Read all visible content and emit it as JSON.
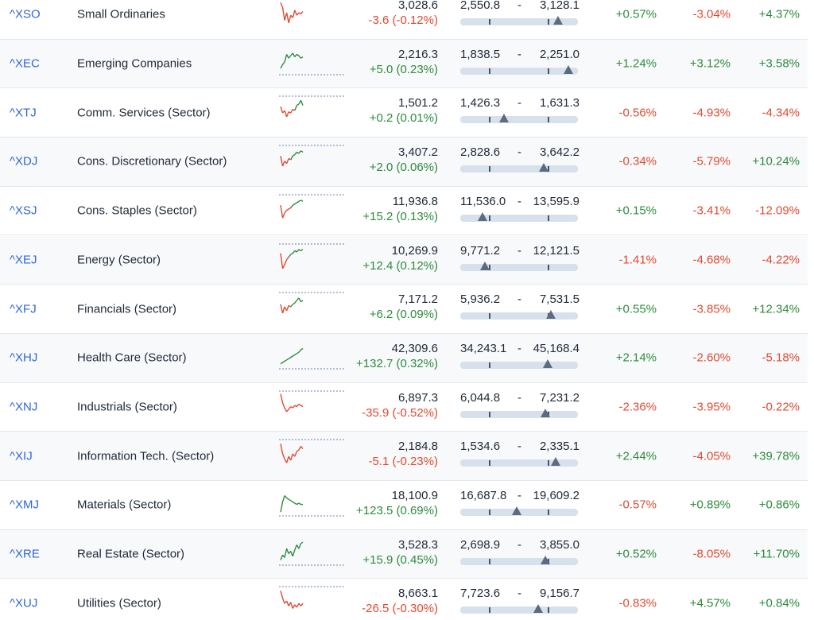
{
  "colors": {
    "positive": "#2e8b3d",
    "negative": "#e04a32",
    "link": "#2f66d6"
  },
  "rows": [
    {
      "code": "^XSO",
      "name": "Small Ordinaries",
      "price": "3,028.6",
      "change": "-3.6 (-0.12%)",
      "change_dir": "neg",
      "range_low": "2,550.8",
      "range_high": "3,128.1",
      "range_position": 0.83,
      "p1": "+0.57%",
      "p1_dir": "pos",
      "p2": "-3.04%",
      "p2_dir": "neg",
      "p3": "+4.37%",
      "p3_dir": "pos",
      "spark": {
        "trend": "neg",
        "points": [
          0.1,
          0.3,
          0.8,
          0.5,
          0.9,
          0.6,
          0.7,
          0.4,
          0.6,
          0.5,
          0.55,
          0.45
        ]
      }
    },
    {
      "code": "^XEC",
      "name": "Emerging Companies",
      "price": "2,216.3",
      "change": "+5.0 (0.23%)",
      "change_dir": "pos",
      "range_low": "1,838.5",
      "range_high": "2,251.0",
      "range_position": 0.92,
      "p1": "+1.24%",
      "p1_dir": "pos",
      "p2": "+3.12%",
      "p2_dir": "pos",
      "p3": "+3.58%",
      "p3_dir": "pos",
      "spark": {
        "trend": "pos",
        "points": [
          0.75,
          0.6,
          0.5,
          0.2,
          0.35,
          0.25,
          0.15,
          0.3,
          0.2,
          0.25,
          0.35,
          0.3
        ]
      }
    },
    {
      "code": "^XTJ",
      "name": "Comm. Services (Sector)",
      "price": "1,501.2",
      "change": "+0.2 (0.01%)",
      "change_dir": "pos",
      "range_low": "1,426.3",
      "range_high": "1,631.3",
      "range_position": 0.37,
      "p1": "-0.56%",
      "p1_dir": "neg",
      "p2": "-4.93%",
      "p2_dir": "neg",
      "p3": "-4.34%",
      "p3_dir": "neg",
      "spark": {
        "trend": "mixed",
        "points": [
          0.35,
          0.6,
          0.5,
          0.75,
          0.55,
          0.6,
          0.45,
          0.5,
          0.3,
          0.25,
          0.1,
          0.3
        ]
      }
    },
    {
      "code": "^XDJ",
      "name": "Cons. Discretionary (Sector)",
      "price": "3,407.2",
      "change": "+2.0 (0.06%)",
      "change_dir": "pos",
      "range_low": "2,828.6",
      "range_high": "3,642.2",
      "range_position": 0.71,
      "p1": "-0.34%",
      "p1_dir": "neg",
      "p2": "-5.79%",
      "p2_dir": "neg",
      "p3": "+10.24%",
      "p3_dir": "pos",
      "spark": {
        "trend": "mixed",
        "points": [
          0.35,
          0.75,
          0.55,
          0.65,
          0.45,
          0.5,
          0.35,
          0.3,
          0.2,
          0.25,
          0.15,
          0.2
        ]
      }
    },
    {
      "code": "^XSJ",
      "name": "Cons. Staples (Sector)",
      "price": "11,936.8",
      "change": "+15.2 (0.13%)",
      "change_dir": "pos",
      "range_low": "11,536.0",
      "range_high": "13,595.9",
      "range_position": 0.19,
      "p1": "+0.15%",
      "p1_dir": "pos",
      "p2": "-3.41%",
      "p2_dir": "neg",
      "p3": "-12.09%",
      "p3_dir": "neg",
      "spark": {
        "trend": "mixed",
        "points": [
          0.35,
          0.85,
          0.65,
          0.55,
          0.5,
          0.45,
          0.35,
          0.3,
          0.25,
          0.2,
          0.15,
          0.2
        ]
      }
    },
    {
      "code": "^XEJ",
      "name": "Energy (Sector)",
      "price": "10,269.9",
      "change": "+12.4 (0.12%)",
      "change_dir": "pos",
      "range_low": "9,771.2",
      "range_high": "12,121.5",
      "range_position": 0.21,
      "p1": "-1.41%",
      "p1_dir": "neg",
      "p2": "-4.68%",
      "p2_dir": "neg",
      "p3": "-4.22%",
      "p3_dir": "neg",
      "spark": {
        "trend": "mixed",
        "points": [
          0.3,
          0.9,
          0.75,
          0.55,
          0.45,
          0.35,
          0.3,
          0.2,
          0.25,
          0.15,
          0.2,
          0.15
        ]
      }
    },
    {
      "code": "^XFJ",
      "name": "Financials (Sector)",
      "price": "7,171.2",
      "change": "+6.2 (0.09%)",
      "change_dir": "pos",
      "range_low": "5,936.2",
      "range_high": "7,531.5",
      "range_position": 0.77,
      "p1": "+0.55%",
      "p1_dir": "pos",
      "p2": "-3.85%",
      "p2_dir": "neg",
      "p3": "+12.34%",
      "p3_dir": "pos",
      "spark": {
        "trend": "mixed",
        "points": [
          0.4,
          0.75,
          0.5,
          0.65,
          0.45,
          0.5,
          0.4,
          0.35,
          0.25,
          0.15,
          0.3,
          0.25
        ]
      }
    },
    {
      "code": "^XHJ",
      "name": "Health Care (Sector)",
      "price": "42,309.6",
      "change": "+132.7 (0.32%)",
      "change_dir": "pos",
      "range_low": "34,243.1",
      "range_high": "45,168.4",
      "range_position": 0.74,
      "p1": "+2.14%",
      "p1_dir": "pos",
      "p2": "-2.60%",
      "p2_dir": "neg",
      "p3": "-5.18%",
      "p3_dir": "neg",
      "spark": {
        "trend": "pos",
        "points": [
          0.8,
          0.75,
          0.7,
          0.65,
          0.6,
          0.55,
          0.5,
          0.45,
          0.4,
          0.35,
          0.25,
          0.2
        ]
      }
    },
    {
      "code": "^XNJ",
      "name": "Industrials (Sector)",
      "price": "6,897.3",
      "change": "-35.9 (-0.52%)",
      "change_dir": "neg",
      "range_low": "6,044.8",
      "range_high": "7,231.2",
      "range_position": 0.72,
      "p1": "-2.36%",
      "p1_dir": "neg",
      "p2": "-3.95%",
      "p2_dir": "neg",
      "p3": "-0.22%",
      "p3_dir": "neg",
      "spark": {
        "trend": "neg",
        "points": [
          0.05,
          0.4,
          0.6,
          0.75,
          0.65,
          0.55,
          0.6,
          0.5,
          0.55,
          0.45,
          0.5,
          0.55
        ]
      }
    },
    {
      "code": "^XIJ",
      "name": "Information Tech. (Sector)",
      "price": "2,184.8",
      "change": "-5.1 (-0.23%)",
      "change_dir": "neg",
      "range_low": "1,534.6",
      "range_high": "2,335.1",
      "range_position": 0.81,
      "p1": "+2.44%",
      "p1_dir": "pos",
      "p2": "-4.05%",
      "p2_dir": "neg",
      "p3": "+39.78%",
      "p3_dir": "pos",
      "spark": {
        "trend": "neg",
        "points": [
          0.1,
          0.5,
          0.7,
          0.85,
          0.6,
          0.75,
          0.5,
          0.6,
          0.4,
          0.35,
          0.2,
          0.3
        ]
      }
    },
    {
      "code": "^XMJ",
      "name": "Materials (Sector)",
      "price": "18,100.9",
      "change": "+123.5 (0.69%)",
      "change_dir": "pos",
      "range_low": "16,687.8",
      "range_high": "19,609.2",
      "range_position": 0.48,
      "p1": "-0.57%",
      "p1_dir": "neg",
      "p2": "+0.89%",
      "p2_dir": "pos",
      "p3": "+0.86%",
      "p3_dir": "pos",
      "spark": {
        "trend": "pos",
        "points": [
          0.85,
          0.45,
          0.2,
          0.3,
          0.35,
          0.4,
          0.45,
          0.5,
          0.55,
          0.5,
          0.55,
          0.55
        ]
      }
    },
    {
      "code": "^XRE",
      "name": "Real Estate (Sector)",
      "price": "3,528.3",
      "change": "+15.9 (0.45%)",
      "change_dir": "pos",
      "range_low": "2,698.9",
      "range_high": "3,855.0",
      "range_position": 0.72,
      "p1": "+0.52%",
      "p1_dir": "pos",
      "p2": "-8.05%",
      "p2_dir": "neg",
      "p3": "+11.70%",
      "p3_dir": "pos",
      "spark": {
        "trend": "pos",
        "points": [
          0.8,
          0.6,
          0.7,
          0.35,
          0.55,
          0.45,
          0.65,
          0.4,
          0.2,
          0.35,
          0.15,
          0.1
        ]
      }
    },
    {
      "code": "^XUJ",
      "name": "Utilities (Sector)",
      "price": "8,663.1",
      "change": "-26.5 (-0.30%)",
      "change_dir": "neg",
      "range_low": "7,723.6",
      "range_high": "9,156.7",
      "range_position": 0.66,
      "p1": "-0.83%",
      "p1_dir": "neg",
      "p2": "+4.57%",
      "p2_dir": "pos",
      "p3": "+0.84%",
      "p3_dir": "pos",
      "spark": {
        "trend": "neg",
        "points": [
          0.1,
          0.4,
          0.6,
          0.5,
          0.7,
          0.55,
          0.8,
          0.65,
          0.75,
          0.6,
          0.7,
          0.6
        ]
      }
    }
  ]
}
